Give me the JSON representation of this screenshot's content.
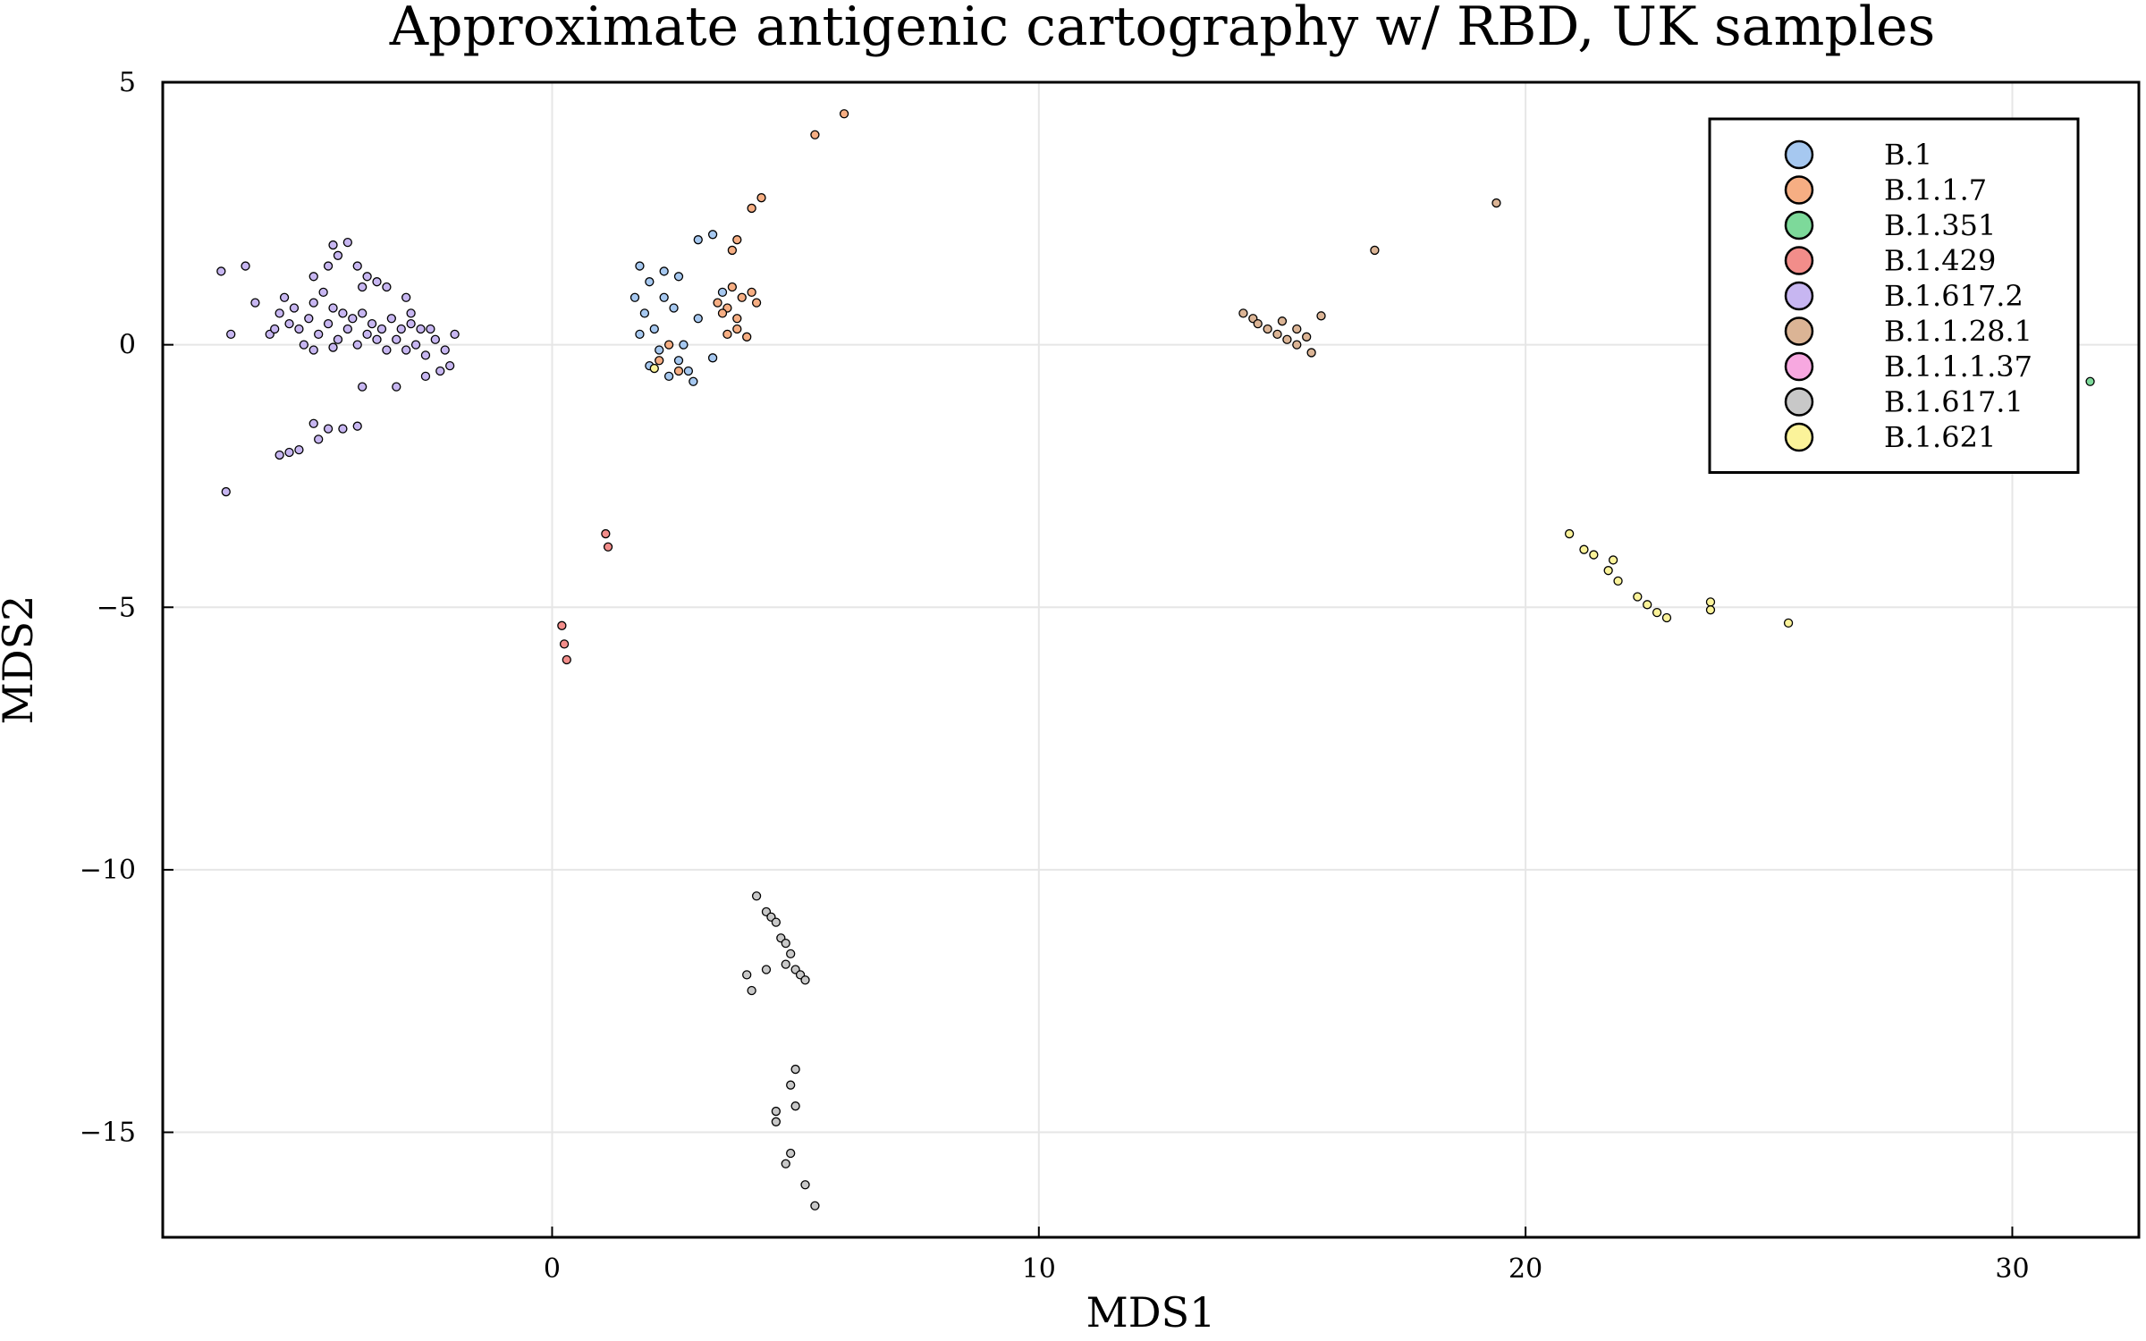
{
  "chart_data": {
    "type": "scatter",
    "title": "Approximate antigenic cartography w/ RBD, UK samples",
    "xlabel": "MDS1",
    "ylabel": "MDS2",
    "xlim": [
      -8,
      32.6
    ],
    "ylim": [
      -17,
      5
    ],
    "xticks": [
      0,
      10,
      20,
      30
    ],
    "yticks": [
      5,
      0,
      -5,
      -10,
      -15
    ],
    "tick_labels_x": [
      "0",
      "10",
      "20",
      "30"
    ],
    "tick_labels_y": [
      "5",
      "0",
      "−5",
      "−10",
      "−15"
    ],
    "grid": true,
    "legend_position": "top-right",
    "series": [
      {
        "name": "B.1",
        "color": "#a6c8f0",
        "points": [
          [
            1.8,
            1.5
          ],
          [
            2.0,
            1.2
          ],
          [
            2.3,
            1.4
          ],
          [
            2.6,
            1.3
          ],
          [
            1.7,
            0.9
          ],
          [
            1.9,
            0.6
          ],
          [
            2.1,
            0.3
          ],
          [
            2.5,
            0.7
          ],
          [
            2.2,
            -0.1
          ],
          [
            2.6,
            -0.3
          ],
          [
            2.8,
            -0.5
          ],
          [
            2.4,
            -0.6
          ],
          [
            2.0,
            -0.4
          ],
          [
            3.0,
            2.0
          ],
          [
            3.3,
            2.1
          ],
          [
            3.0,
            0.5
          ],
          [
            3.5,
            1.0
          ],
          [
            3.3,
            -0.25
          ],
          [
            2.7,
            0.0
          ],
          [
            2.9,
            -0.7
          ],
          [
            2.3,
            0.9
          ],
          [
            1.8,
            0.2
          ]
        ]
      },
      {
        "name": "B.1.1.7",
        "color": "#f6ae83",
        "points": [
          [
            5.4,
            4.0
          ],
          [
            6.0,
            4.4
          ],
          [
            4.3,
            2.8
          ],
          [
            4.1,
            2.6
          ],
          [
            3.7,
            1.8
          ],
          [
            3.8,
            2.0
          ],
          [
            3.4,
            0.8
          ],
          [
            3.6,
            0.7
          ],
          [
            3.9,
            0.9
          ],
          [
            4.1,
            1.0
          ],
          [
            3.7,
            1.1
          ],
          [
            3.5,
            0.6
          ],
          [
            3.8,
            0.5
          ],
          [
            4.0,
            0.15
          ],
          [
            3.6,
            0.2
          ],
          [
            3.8,
            0.3
          ],
          [
            2.2,
            -0.3
          ],
          [
            2.6,
            -0.5
          ],
          [
            2.4,
            0.0
          ],
          [
            4.2,
            0.8
          ]
        ]
      },
      {
        "name": "B.1.351",
        "color": "#7dd99a",
        "points": [
          [
            31.6,
            -0.7
          ]
        ]
      },
      {
        "name": "B.1.429",
        "color": "#f28d8a",
        "points": [
          [
            1.1,
            -3.6
          ],
          [
            1.15,
            -3.85
          ],
          [
            0.2,
            -5.35
          ],
          [
            0.25,
            -5.7
          ],
          [
            0.3,
            -6.0
          ]
        ]
      },
      {
        "name": "B.1.617.2",
        "color": "#c7b6f1",
        "points": [
          [
            -6.8,
            1.4
          ],
          [
            -6.3,
            1.5
          ],
          [
            -6.1,
            0.8
          ],
          [
            -6.6,
            0.2
          ],
          [
            -5.8,
            0.2
          ],
          [
            -5.6,
            0.6
          ],
          [
            -5.4,
            0.4
          ],
          [
            -5.2,
            0.3
          ],
          [
            -5.0,
            0.5
          ],
          [
            -4.8,
            0.2
          ],
          [
            -4.6,
            0.4
          ],
          [
            -4.4,
            0.1
          ],
          [
            -4.2,
            0.3
          ],
          [
            -4.0,
            0.0
          ],
          [
            -3.8,
            0.2
          ],
          [
            -3.6,
            0.1
          ],
          [
            -3.4,
            -0.1
          ],
          [
            -3.2,
            0.1
          ],
          [
            -3.0,
            -0.1
          ],
          [
            -2.8,
            0.0
          ],
          [
            -2.6,
            -0.2
          ],
          [
            -2.4,
            0.1
          ],
          [
            -2.2,
            -0.1
          ],
          [
            -2.0,
            0.2
          ],
          [
            -2.1,
            -0.4
          ],
          [
            -2.3,
            -0.5
          ],
          [
            -2.6,
            -0.6
          ],
          [
            -5.5,
            0.9
          ],
          [
            -5.3,
            0.7
          ],
          [
            -4.9,
            0.8
          ],
          [
            -4.7,
            1.0
          ],
          [
            -4.5,
            0.7
          ],
          [
            -4.3,
            0.6
          ],
          [
            -5.7,
            0.3
          ],
          [
            -5.1,
            0.0
          ],
          [
            -4.9,
            -0.1
          ],
          [
            -4.5,
            -0.05
          ],
          [
            -4.1,
            0.5
          ],
          [
            -3.9,
            0.6
          ],
          [
            -3.7,
            0.4
          ],
          [
            -3.5,
            0.3
          ],
          [
            -3.3,
            0.5
          ],
          [
            -3.1,
            0.3
          ],
          [
            -2.9,
            0.4
          ],
          [
            -2.7,
            0.3
          ],
          [
            -2.5,
            0.3
          ],
          [
            -4.5,
            1.9
          ],
          [
            -4.2,
            1.95
          ],
          [
            -4.4,
            1.7
          ],
          [
            -4.0,
            1.5
          ],
          [
            -3.8,
            1.3
          ],
          [
            -3.6,
            1.2
          ],
          [
            -3.4,
            1.1
          ],
          [
            -3.9,
            1.1
          ],
          [
            -4.6,
            1.5
          ],
          [
            -3.0,
            0.9
          ],
          [
            -2.9,
            0.6
          ],
          [
            -3.9,
            -0.8
          ],
          [
            -3.2,
            -0.8
          ],
          [
            -4.9,
            -1.5
          ],
          [
            -4.6,
            -1.6
          ],
          [
            -4.3,
            -1.6
          ],
          [
            -4.0,
            -1.55
          ],
          [
            -4.8,
            -1.8
          ],
          [
            -5.2,
            -2.0
          ],
          [
            -5.6,
            -2.1
          ],
          [
            -5.4,
            -2.05
          ],
          [
            -6.7,
            -2.8
          ],
          [
            -4.9,
            1.3
          ]
        ]
      },
      {
        "name": "B.1.1.28.1",
        "color": "#dbb495",
        "points": [
          [
            14.2,
            0.6
          ],
          [
            14.4,
            0.5
          ],
          [
            14.5,
            0.4
          ],
          [
            14.7,
            0.3
          ],
          [
            14.9,
            0.2
          ],
          [
            15.1,
            0.1
          ],
          [
            15.3,
            0.3
          ],
          [
            15.5,
            0.15
          ],
          [
            15.6,
            -0.15
          ],
          [
            15.8,
            0.55
          ],
          [
            15.0,
            0.45
          ],
          [
            15.3,
            0.0
          ],
          [
            16.9,
            1.8
          ],
          [
            19.4,
            2.7
          ]
        ]
      },
      {
        "name": "B.1.1.1.37",
        "color": "#f7a8e0",
        "points": []
      },
      {
        "name": "B.1.617.1",
        "color": "#c8c8c8",
        "points": [
          [
            4.2,
            -10.5
          ],
          [
            4.4,
            -10.8
          ],
          [
            4.5,
            -10.9
          ],
          [
            4.6,
            -11.0
          ],
          [
            4.7,
            -11.3
          ],
          [
            4.8,
            -11.4
          ],
          [
            4.9,
            -11.6
          ],
          [
            4.8,
            -11.8
          ],
          [
            5.0,
            -11.9
          ],
          [
            5.1,
            -12.0
          ],
          [
            5.2,
            -12.1
          ],
          [
            4.0,
            -12.0
          ],
          [
            4.1,
            -12.3
          ],
          [
            4.4,
            -11.9
          ],
          [
            5.0,
            -13.8
          ],
          [
            4.9,
            -14.1
          ],
          [
            5.0,
            -14.5
          ],
          [
            4.6,
            -14.6
          ],
          [
            4.6,
            -14.8
          ],
          [
            4.9,
            -15.4
          ],
          [
            4.8,
            -15.6
          ],
          [
            5.2,
            -16.0
          ],
          [
            5.4,
            -16.4
          ]
        ]
      },
      {
        "name": "B.1.621",
        "color": "#fbf39a",
        "points": [
          [
            20.9,
            -3.6
          ],
          [
            21.2,
            -3.9
          ],
          [
            21.4,
            -4.0
          ],
          [
            21.7,
            -4.3
          ],
          [
            21.8,
            -4.1
          ],
          [
            21.9,
            -4.5
          ],
          [
            22.3,
            -4.8
          ],
          [
            22.5,
            -4.95
          ],
          [
            22.7,
            -5.1
          ],
          [
            22.9,
            -5.2
          ],
          [
            23.8,
            -4.9
          ],
          [
            23.8,
            -5.05
          ],
          [
            25.4,
            -5.3
          ],
          [
            2.1,
            -0.45
          ]
        ]
      }
    ]
  }
}
